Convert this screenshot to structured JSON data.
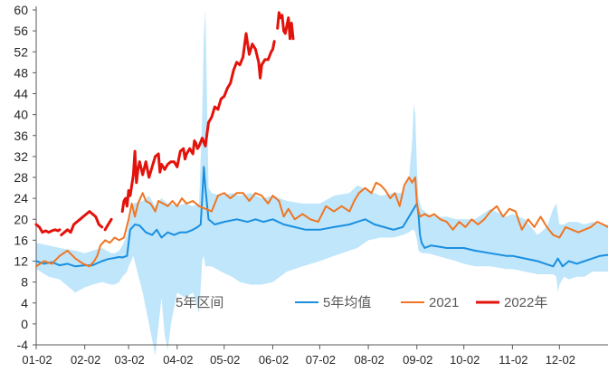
{
  "chart_data": {
    "type": "line",
    "title": "",
    "xlabel": "",
    "ylabel": "",
    "ylim": [
      -4,
      60
    ],
    "yticks": [
      -4,
      0,
      4,
      8,
      12,
      16,
      20,
      24,
      28,
      32,
      36,
      40,
      44,
      48,
      52,
      56,
      60
    ],
    "xlim": [
      0,
      365
    ],
    "xticks": [
      {
        "label": "01-02",
        "x": 0
      },
      {
        "label": "02-02",
        "x": 31
      },
      {
        "label": "03-02",
        "x": 59
      },
      {
        "label": "04-02",
        "x": 90
      },
      {
        "label": "05-02",
        "x": 120
      },
      {
        "label": "06-02",
        "x": 151
      },
      {
        "label": "07-02",
        "x": 181
      },
      {
        "label": "08-02",
        "x": 212
      },
      {
        "label": "09-02",
        "x": 243
      },
      {
        "label": "10-02",
        "x": 273
      },
      {
        "label": "11-02",
        "x": 304
      },
      {
        "label": "12-02",
        "x": 334
      }
    ],
    "legend_position": "bottom",
    "band": {
      "name": "5年区间",
      "color": "#bfe6fb",
      "x": [
        0,
        8,
        15,
        25,
        31,
        36,
        42,
        48,
        50,
        53,
        55,
        58,
        59,
        62,
        68,
        72,
        76,
        80,
        82,
        84,
        86,
        90,
        95,
        100,
        104,
        106,
        107,
        108,
        109,
        110,
        112,
        118,
        125,
        130,
        137,
        144,
        151,
        160,
        170,
        181,
        190,
        200,
        205,
        212,
        220,
        228,
        234,
        238,
        240,
        241,
        242,
        243,
        244,
        246,
        250,
        256,
        262,
        268,
        273,
        280,
        290,
        300,
        304,
        312,
        320,
        326,
        330,
        332,
        333,
        334,
        337,
        340,
        345,
        350,
        355,
        360,
        365
      ],
      "upper": [
        15.5,
        15,
        14.5,
        14,
        13.5,
        14,
        14.5,
        13.5,
        13.5,
        14,
        15,
        17,
        19,
        23,
        23.5,
        24.5,
        22.5,
        24,
        23.5,
        23,
        23,
        22.5,
        23,
        22.5,
        23,
        40,
        55,
        60,
        44,
        26,
        25,
        24.5,
        25,
        24.5,
        25,
        24,
        24.5,
        23.5,
        23,
        23,
        24.5,
        25,
        26.5,
        25.5,
        24.5,
        25,
        25,
        28,
        35,
        42,
        40,
        30,
        24,
        22,
        21,
        20.5,
        20.5,
        20,
        20,
        20,
        22,
        20.5,
        21,
        20,
        17,
        18.5,
        22,
        23,
        21,
        19,
        19,
        19.5,
        19.5,
        19,
        19.5,
        19,
        19
      ],
      "lower": [
        10.5,
        9,
        8.5,
        6,
        7,
        7.5,
        8,
        7.5,
        7.5,
        8,
        9,
        10,
        11,
        13,
        6,
        0,
        -6,
        5,
        -2,
        -5,
        0,
        6,
        5,
        6,
        2,
        12,
        13,
        11,
        11,
        11,
        11,
        10,
        9,
        8,
        7.5,
        7.5,
        8,
        10,
        11,
        12,
        13,
        14,
        14.5,
        16,
        16.5,
        16.5,
        17,
        17.5,
        18,
        18,
        17.5,
        16,
        14,
        13.5,
        13.5,
        13,
        12.5,
        12,
        11.5,
        11,
        11,
        10.5,
        10.5,
        10,
        9.5,
        9.5,
        9.5,
        9,
        6,
        7.5,
        9,
        8.5,
        9,
        9,
        10,
        10,
        10
      ]
    },
    "series": [
      {
        "name": "5年均值",
        "color": "#1a8fe0",
        "x": [
          0,
          5,
          10,
          15,
          20,
          25,
          31,
          36,
          42,
          46,
          50,
          53,
          55,
          58,
          60,
          63,
          66,
          70,
          74,
          77,
          80,
          84,
          88,
          92,
          96,
          100,
          103,
          105,
          106,
          107,
          108,
          110,
          114,
          120,
          128,
          135,
          140,
          145,
          151,
          158,
          165,
          172,
          181,
          190,
          200,
          205,
          210,
          216,
          222,
          228,
          234,
          238,
          241,
          243,
          244,
          245,
          246,
          248,
          252,
          256,
          262,
          268,
          273,
          280,
          290,
          300,
          304,
          312,
          320,
          325,
          330,
          333,
          336,
          340,
          345,
          350,
          355,
          360,
          365
        ],
        "values": [
          12,
          11.5,
          11.8,
          11.2,
          11.5,
          11,
          11.2,
          11.2,
          12,
          12.4,
          12.6,
          12.8,
          12.7,
          13,
          18,
          19,
          18.8,
          17.5,
          17,
          18,
          16.5,
          17.5,
          17,
          17.5,
          17.5,
          18,
          18.5,
          19,
          24,
          30,
          26,
          20,
          19,
          19.5,
          20,
          19.5,
          20,
          19.5,
          20,
          19,
          18.5,
          18,
          18,
          18.5,
          19,
          19.5,
          20,
          19,
          18.5,
          18,
          18.5,
          20.5,
          22,
          23,
          21,
          17,
          15.5,
          14.5,
          15,
          14.8,
          14.5,
          14.5,
          14.5,
          14,
          13.5,
          13,
          13,
          12.5,
          12,
          11.5,
          11,
          12.5,
          11,
          12,
          11.5,
          12,
          12.5,
          13,
          13.2
        ]
      },
      {
        "name": "2021",
        "color": "#f07522",
        "x": [
          0,
          5,
          10,
          15,
          20,
          25,
          30,
          34,
          37,
          39,
          41,
          44,
          47,
          50,
          53,
          56,
          59,
          61,
          63,
          65,
          68,
          70,
          73,
          76,
          78,
          81,
          84,
          87,
          90,
          93,
          96,
          100,
          104,
          108,
          112,
          116,
          120,
          124,
          128,
          132,
          136,
          140,
          144,
          148,
          151,
          155,
          158,
          161,
          165,
          170,
          175,
          180,
          185,
          190,
          195,
          200,
          203,
          206,
          210,
          214,
          217,
          220,
          223,
          226,
          229,
          232,
          235,
          238,
          240,
          241,
          242,
          243,
          244,
          245,
          248,
          251,
          254,
          258,
          262,
          266,
          270,
          274,
          278,
          282,
          286,
          290,
          294,
          298,
          302,
          306,
          310,
          314,
          318,
          322,
          326,
          330,
          334,
          336,
          338,
          342,
          346,
          350,
          354,
          358,
          362,
          365
        ],
        "values": [
          11,
          12,
          11.5,
          13,
          14,
          12.5,
          11.5,
          11,
          12,
          13,
          15,
          16,
          15.5,
          16.5,
          16,
          16.5,
          20,
          23,
          20.5,
          23,
          25,
          23.5,
          23,
          21.5,
          23.5,
          23,
          22.5,
          23.5,
          22.5,
          24,
          23,
          23.5,
          22.5,
          22,
          21.5,
          24.5,
          25,
          24,
          25,
          25,
          23.5,
          25,
          24.5,
          23,
          24.5,
          23.5,
          20.5,
          22,
          20,
          21,
          20,
          19.5,
          22.5,
          21.5,
          22.5,
          21.5,
          23.5,
          25,
          26,
          25,
          27,
          26.5,
          25.5,
          24,
          25,
          22.5,
          26.5,
          28,
          27,
          27.5,
          28,
          23,
          21.5,
          20.5,
          21,
          20.5,
          21,
          20,
          19.5,
          18,
          19.5,
          18.5,
          20,
          19,
          20,
          21.5,
          22.5,
          20.5,
          22,
          21.5,
          18,
          20,
          18.5,
          20.5,
          18.5,
          17,
          16.5,
          17.5,
          18.5,
          18,
          17.5,
          18,
          18.5,
          19.5,
          19,
          18.5
        ]
      },
      {
        "name": "2022年",
        "color": "#e3120b",
        "segments": [
          {
            "x": [
              0,
              2,
              4,
              6,
              8,
              10,
              12,
              14,
              15
            ],
            "values": [
              19,
              18.5,
              17.5,
              17.8,
              17.5,
              17.8,
              18,
              17.8,
              18
            ]
          },
          {
            "x": [
              16,
              18,
              20,
              22,
              24,
              26,
              28,
              30,
              32,
              34,
              36,
              38,
              40,
              42
            ],
            "values": [
              17,
              17.5,
              18,
              17.5,
              19,
              19.5,
              20,
              20.5,
              21,
              21.5,
              21,
              20.5,
              19,
              18.5
            ]
          },
          {
            "x": [
              44,
              46,
              47,
              48
            ],
            "values": [
              18,
              19,
              19.5,
              20
            ]
          },
          {
            "x": [
              55,
              56,
              57,
              58,
              59,
              60,
              62,
              63,
              64,
              65,
              66,
              68,
              70,
              72,
              74,
              76,
              78,
              79,
              80,
              81,
              82,
              84,
              86,
              88,
              90,
              92,
              94,
              95,
              96,
              98,
              100,
              101,
              102,
              103,
              104,
              106,
              108,
              110,
              112,
              114,
              116,
              118,
              120,
              122,
              124,
              126,
              128,
              130,
              132,
              134,
              136,
              138,
              140,
              142,
              143,
              144,
              146,
              148,
              150,
              151,
              152
            ],
            "values": [
              21.5,
              23.5,
              24,
              22.5,
              25.5,
              24.5,
              28.5,
              33,
              27,
              29.5,
              31,
              28.5,
              31,
              28,
              30,
              32,
              32.5,
              29,
              30.5,
              30,
              29.5,
              30.5,
              31,
              31,
              30,
              33,
              33.5,
              31.5,
              32.5,
              33.5,
              32.5,
              35,
              34.5,
              33.5,
              34,
              35.5,
              34,
              38.5,
              39.5,
              41.5,
              41,
              43,
              43.5,
              45,
              46,
              48.5,
              50,
              49.5,
              51,
              55.5,
              51.5,
              53.5,
              52.5,
              50,
              47,
              49.5,
              50.5,
              50.5,
              52,
              52.5,
              54
            ]
          },
          {
            "x": [
              154,
              155,
              156,
              157,
              158,
              159,
              160,
              161,
              162,
              163,
              164
            ],
            "values": [
              56.5,
              59.5,
              58.5,
              59,
              56,
              55.5,
              57,
              58.5,
              54.5,
              57.5,
              54.5
            ]
          }
        ]
      }
    ]
  }
}
